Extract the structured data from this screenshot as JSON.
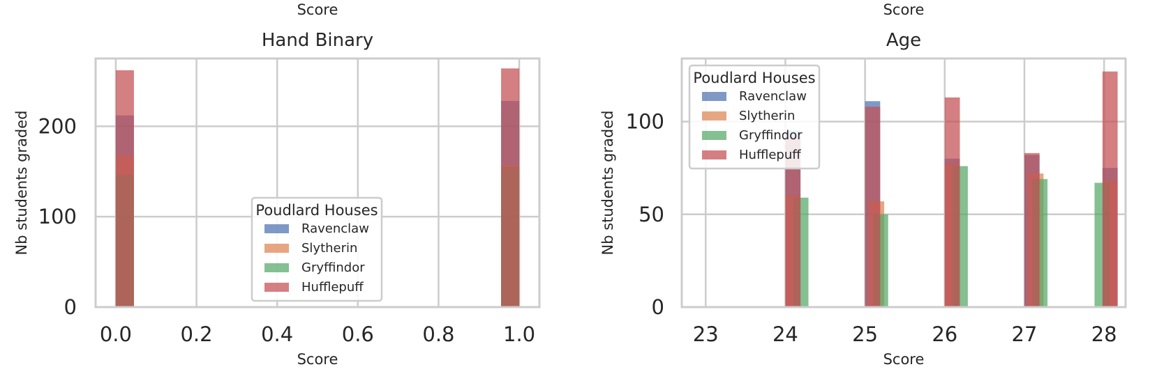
{
  "chart_data": [
    {
      "type": "bar",
      "title": "Hand Binary",
      "top_label": "Score",
      "xlabel": "Score",
      "ylabel": "Nb students graded",
      "xlim": [
        -0.05,
        1.05
      ],
      "ylim": [
        0,
        275
      ],
      "xticks": [
        0.0,
        0.2,
        0.4,
        0.6,
        0.8,
        1.0
      ],
      "xtick_labels": [
        "0.0",
        "0.2",
        "0.4",
        "0.6",
        "0.8",
        "1.0"
      ],
      "yticks": [
        0,
        100,
        200
      ],
      "ytick_labels": [
        "0",
        "100",
        "200"
      ],
      "grid": true,
      "legend_position": "lower-center",
      "legend_title": "Poudlard Houses",
      "bin_width": 0.045,
      "series": [
        {
          "name": "Ravenclaw",
          "color": "#4c72b0",
          "x": [
            0.0,
            0.955
          ],
          "values": [
            212,
            228
          ]
        },
        {
          "name": "Slytherin",
          "color": "#dd8452",
          "x": [
            0.0,
            0.955
          ],
          "values": [
            168,
            157
          ]
        },
        {
          "name": "Gryffindor",
          "color": "#55a868",
          "x": [
            0.0,
            0.955
          ],
          "values": [
            146,
            155
          ]
        },
        {
          "name": "Hufflepuff",
          "color": "#c44e52",
          "x": [
            0.0,
            0.955
          ],
          "values": [
            262,
            264
          ]
        }
      ]
    },
    {
      "type": "bar",
      "title": "Age",
      "top_label": "Score",
      "xlabel": "Score",
      "ylabel": "Nb students graded",
      "xlim": [
        22.7,
        28.27
      ],
      "ylim": [
        0,
        134
      ],
      "xticks": [
        23,
        24,
        25,
        26,
        27,
        28
      ],
      "xtick_labels": [
        "23",
        "24",
        "25",
        "26",
        "27",
        "28"
      ],
      "yticks": [
        0,
        50,
        100
      ],
      "ytick_labels": [
        "0",
        "50",
        "100"
      ],
      "grid": true,
      "legend_position": "upper-left",
      "legend_title": "Poudlard Houses",
      "bin_width": 0.19,
      "series": [
        {
          "name": "Ravenclaw",
          "color": "#4c72b0",
          "x": [
            24.0,
            25.0,
            26.0,
            27.0,
            27.98
          ],
          "values": [
            95,
            111,
            80,
            82,
            75
          ]
        },
        {
          "name": "Slytherin",
          "color": "#dd8452",
          "x": [
            24.0,
            25.05,
            26.0,
            27.05,
            27.98
          ],
          "values": [
            60,
            57,
            77,
            72,
            68
          ]
        },
        {
          "name": "Gryffindor",
          "color": "#55a868",
          "x": [
            24.1,
            25.1,
            26.1,
            27.1,
            27.88
          ],
          "values": [
            59,
            50,
            76,
            69,
            67
          ]
        },
        {
          "name": "Hufflepuff",
          "color": "#c44e52",
          "x": [
            24.0,
            25.0,
            26.0,
            27.0,
            27.98
          ],
          "values": [
            92,
            108,
            113,
            83,
            127
          ]
        }
      ]
    }
  ]
}
